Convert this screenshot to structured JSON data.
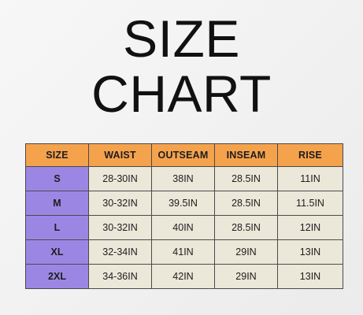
{
  "title": {
    "line1": "SIZE",
    "line2": "CHART"
  },
  "table": {
    "headers": [
      "SIZE",
      "WAIST",
      "OUTSEAM",
      "INSEAM",
      "RISE"
    ],
    "rows": [
      [
        "S",
        "28-30IN",
        "38IN",
        "28.5IN",
        "11IN"
      ],
      [
        "M",
        "30-32IN",
        "39.5IN",
        "28.5IN",
        "11.5IN"
      ],
      [
        "L",
        "30-32IN",
        "40IN",
        "28.5IN",
        "12IN"
      ],
      [
        "XL",
        "32-34IN",
        "41IN",
        "29IN",
        "13IN"
      ],
      [
        "2XL",
        "34-36IN",
        "42IN",
        "29IN",
        "13IN"
      ]
    ]
  },
  "colors": {
    "header_bg": "#f5a24d",
    "size_col_bg": "#9b87e3",
    "value_bg": "#ebe7d9",
    "border": "#4a4a4a",
    "title_text": "#111111"
  }
}
